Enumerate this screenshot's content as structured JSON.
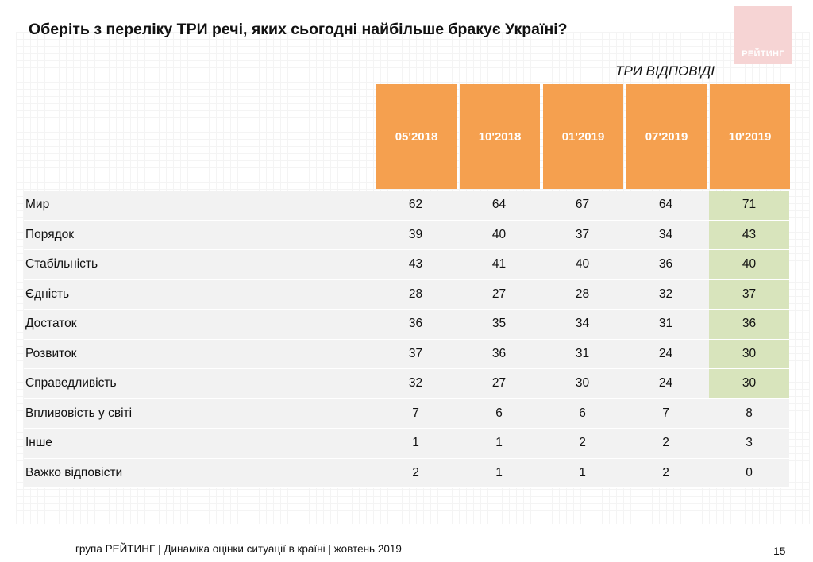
{
  "title": "Оберіть з переліку ТРИ речі, яких сьогодні найбільше бракує Україні?",
  "subtitle": "ТРИ ВІДПОВІДІ",
  "logo": "РЕЙТИНГ",
  "columns": [
    "05'2018",
    "10'2018",
    "01'2019",
    "07'2019",
    "10'2019"
  ],
  "rows": [
    {
      "label": "Мир",
      "values": [
        "62",
        "64",
        "67",
        "64",
        "71"
      ]
    },
    {
      "label": "Порядок",
      "values": [
        "39",
        "40",
        "37",
        "34",
        "43"
      ]
    },
    {
      "label": "Стабільність",
      "values": [
        "43",
        "41",
        "40",
        "36",
        "40"
      ]
    },
    {
      "label": "Єдність",
      "values": [
        "28",
        "27",
        "28",
        "32",
        "37"
      ]
    },
    {
      "label": "Достаток",
      "values": [
        "36",
        "35",
        "34",
        "31",
        "36"
      ]
    },
    {
      "label": "Розвиток",
      "values": [
        "37",
        "36",
        "31",
        "24",
        "30"
      ]
    },
    {
      "label": "Справедливість",
      "values": [
        "32",
        "27",
        "30",
        "24",
        "30"
      ]
    },
    {
      "label": "Впливовість у світі",
      "values": [
        "7",
        "6",
        "6",
        "7",
        "8"
      ]
    },
    {
      "label": "Інше",
      "values": [
        "1",
        "1",
        "2",
        "2",
        "3"
      ]
    },
    {
      "label": "Важко відповісти",
      "values": [
        "2",
        "1",
        "1",
        "2",
        "0"
      ]
    }
  ],
  "highlight_rows": 7,
  "colors": {
    "header": "#f5a04f",
    "highlight": "#d8e4bc",
    "row_bg": "#f2f2f2",
    "logo_bg": "#f6d4d4"
  },
  "footer": "група РЕЙТИНГ | Динаміка оцінки ситуації в країні  |  жовтень  2019",
  "page_number": "15"
}
